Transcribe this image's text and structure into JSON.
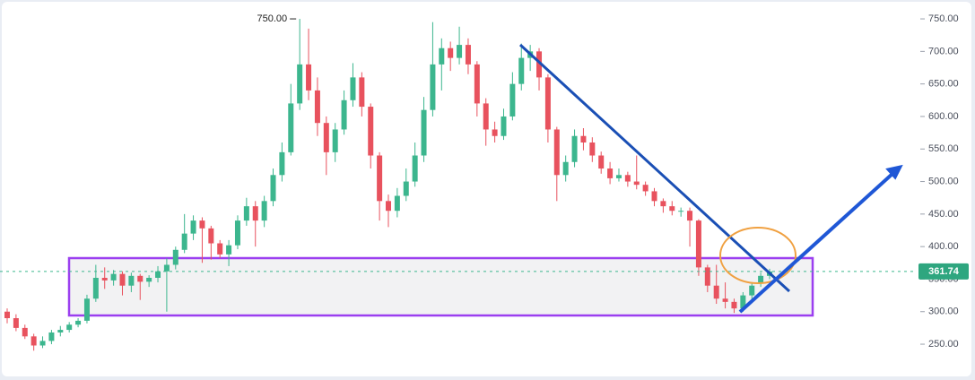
{
  "chart_data": {
    "type": "candlestick",
    "ylim": [
      217,
      779
    ],
    "yticks": [
      {
        "value": 250,
        "label": "250.00"
      },
      {
        "value": 300,
        "label": "300.00"
      },
      {
        "value": 350,
        "label": "350.00"
      },
      {
        "value": 400,
        "label": "400.00"
      },
      {
        "value": 450,
        "label": "450.00"
      },
      {
        "value": 500,
        "label": "500.00"
      },
      {
        "value": 550,
        "label": "550.00"
      },
      {
        "value": 600,
        "label": "600.00"
      },
      {
        "value": 650,
        "label": "650.00"
      },
      {
        "value": 700,
        "label": "700.00"
      },
      {
        "value": 750,
        "label": "750.00"
      }
    ],
    "grid": false,
    "up_color": "#3cb68e",
    "down_color": "#e8525e",
    "high_annotation": {
      "value": 750,
      "label": "750.00"
    },
    "candles": [
      [
        300,
        305,
        282,
        290
      ],
      [
        290,
        296,
        270,
        275
      ],
      [
        275,
        280,
        258,
        262
      ],
      [
        262,
        266,
        240,
        248
      ],
      [
        248,
        262,
        244,
        255
      ],
      [
        255,
        272,
        250,
        268
      ],
      [
        268,
        278,
        262,
        272
      ],
      [
        272,
        284,
        268,
        280
      ],
      [
        280,
        290,
        276,
        286
      ],
      [
        286,
        326,
        282,
        320
      ],
      [
        320,
        372,
        315,
        352
      ],
      [
        352,
        368,
        335,
        348
      ],
      [
        348,
        364,
        340,
        358
      ],
      [
        358,
        362,
        325,
        340
      ],
      [
        340,
        360,
        330,
        355
      ],
      [
        355,
        358,
        318,
        346
      ],
      [
        346,
        356,
        338,
        352
      ],
      [
        352,
        370,
        345,
        362
      ],
      [
        362,
        382,
        300,
        372
      ],
      [
        372,
        400,
        365,
        395
      ],
      [
        395,
        450,
        390,
        420
      ],
      [
        420,
        448,
        410,
        440
      ],
      [
        440,
        445,
        375,
        428
      ],
      [
        428,
        432,
        380,
        405
      ],
      [
        405,
        410,
        382,
        388
      ],
      [
        388,
        410,
        370,
        402
      ],
      [
        402,
        448,
        396,
        440
      ],
      [
        440,
        475,
        432,
        462
      ],
      [
        462,
        470,
        400,
        440
      ],
      [
        440,
        478,
        430,
        470
      ],
      [
        470,
        520,
        462,
        510
      ],
      [
        510,
        560,
        500,
        545
      ],
      [
        545,
        650,
        540,
        620
      ],
      [
        620,
        750,
        610,
        680
      ],
      [
        680,
        735,
        625,
        640
      ],
      [
        640,
        660,
        570,
        590
      ],
      [
        590,
        600,
        510,
        545
      ],
      [
        545,
        590,
        530,
        580
      ],
      [
        580,
        640,
        572,
        625
      ],
      [
        625,
        682,
        615,
        660
      ],
      [
        660,
        668,
        600,
        615
      ],
      [
        615,
        620,
        520,
        540
      ],
      [
        540,
        545,
        440,
        470
      ],
      [
        470,
        480,
        430,
        455
      ],
      [
        455,
        490,
        445,
        478
      ],
      [
        478,
        520,
        470,
        500
      ],
      [
        500,
        560,
        492,
        540
      ],
      [
        540,
        630,
        530,
        610
      ],
      [
        610,
        745,
        600,
        680
      ],
      [
        680,
        720,
        640,
        705
      ],
      [
        705,
        715,
        670,
        690
      ],
      [
        690,
        738,
        680,
        710
      ],
      [
        710,
        720,
        665,
        680
      ],
      [
        680,
        685,
        600,
        620
      ],
      [
        620,
        628,
        555,
        580
      ],
      [
        580,
        592,
        560,
        570
      ],
      [
        570,
        612,
        564,
        600
      ],
      [
        600,
        668,
        594,
        650
      ],
      [
        650,
        712,
        640,
        690
      ],
      [
        690,
        710,
        670,
        700
      ],
      [
        700,
        705,
        640,
        660
      ],
      [
        660,
        665,
        560,
        580
      ],
      [
        580,
        584,
        470,
        510
      ],
      [
        510,
        540,
        500,
        530
      ],
      [
        530,
        580,
        522,
        570
      ],
      [
        570,
        582,
        548,
        560
      ],
      [
        560,
        568,
        530,
        540
      ],
      [
        540,
        546,
        512,
        520
      ],
      [
        520,
        530,
        496,
        505
      ],
      [
        505,
        520,
        500,
        510
      ],
      [
        510,
        515,
        492,
        500
      ],
      [
        500,
        540,
        488,
        495
      ],
      [
        495,
        500,
        478,
        485
      ],
      [
        485,
        490,
        462,
        470
      ],
      [
        470,
        474,
        452,
        462
      ],
      [
        462,
        470,
        448,
        455
      ],
      [
        455,
        460,
        446,
        455
      ],
      [
        455,
        460,
        400,
        440
      ],
      [
        440,
        442,
        355,
        368
      ],
      [
        368,
        372,
        330,
        340
      ],
      [
        340,
        372,
        312,
        320
      ],
      [
        320,
        345,
        305,
        315
      ],
      [
        315,
        320,
        298,
        305
      ],
      [
        305,
        330,
        300,
        325
      ],
      [
        325,
        345,
        318,
        340
      ],
      [
        345,
        360,
        338,
        355
      ],
      [
        355,
        366,
        350,
        361.74
      ]
    ]
  }
}
